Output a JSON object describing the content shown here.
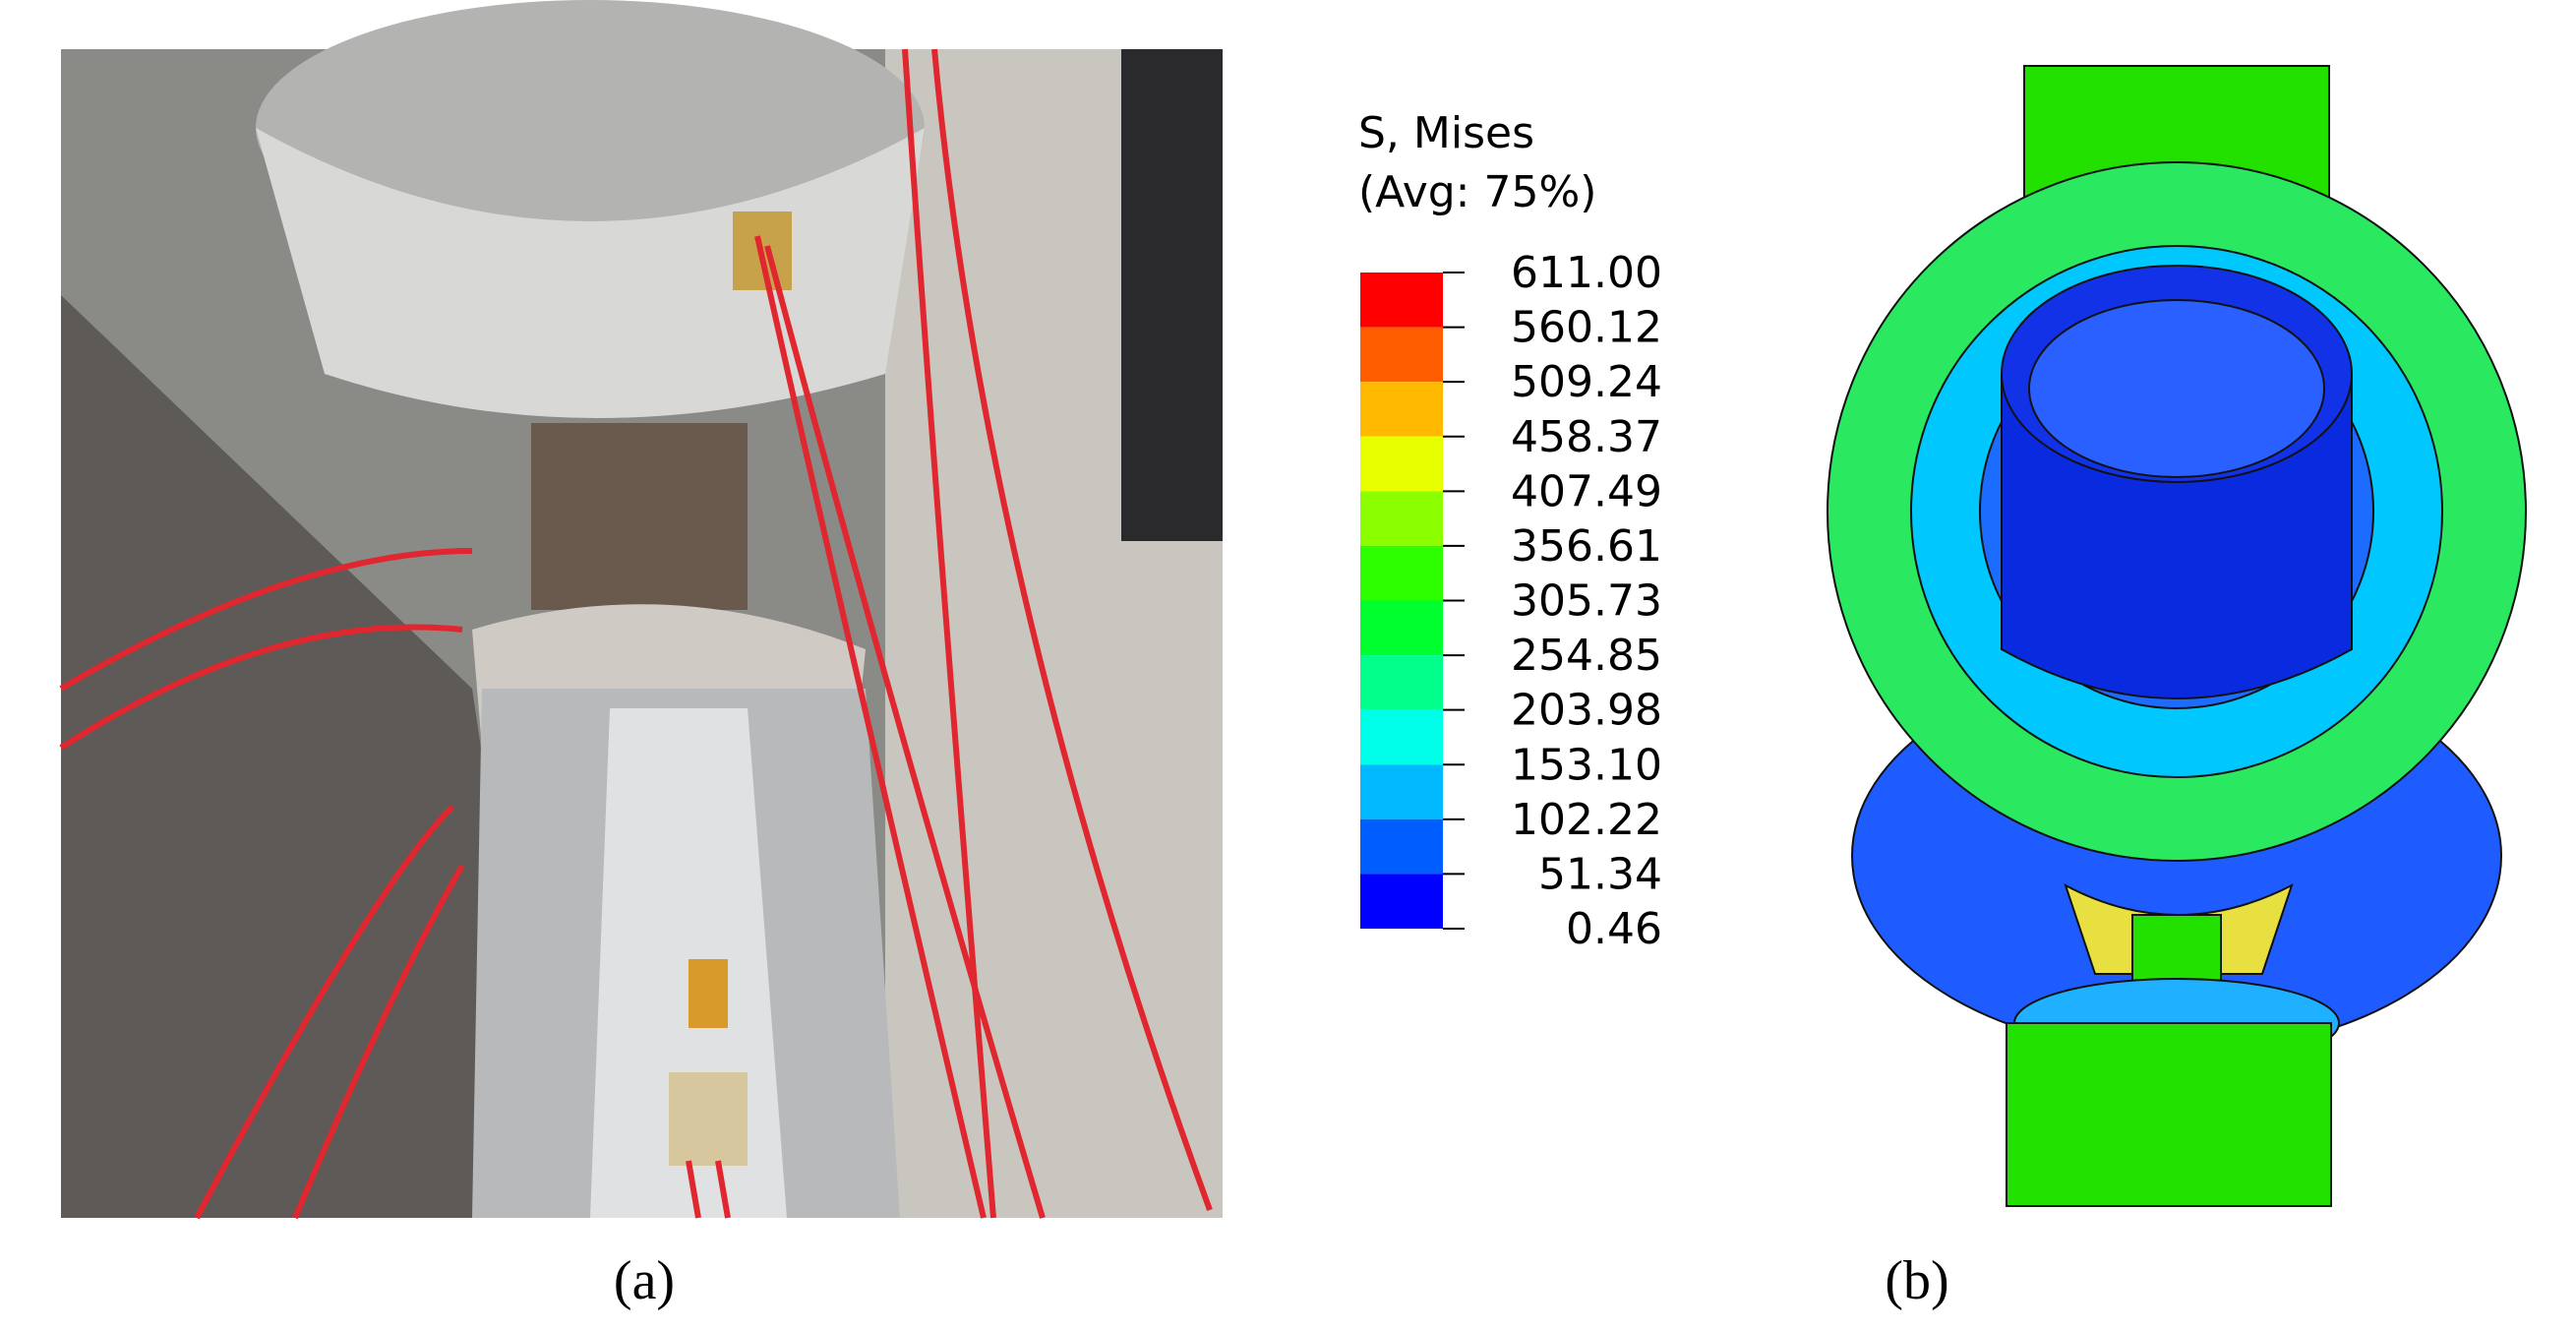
{
  "legend": {
    "title": [
      "S, Mises",
      "(Avg: 75%)"
    ],
    "labels": [
      "611.00",
      "560.12",
      "509.24",
      "458.37",
      "407.49",
      "356.61",
      "305.73",
      "254.85",
      "203.98",
      "153.10",
      "102.22",
      "51.34",
      "0.46"
    ],
    "colors": [
      "#ff0000",
      "#ff5d00",
      "#ffb900",
      "#e8ff00",
      "#8bff00",
      "#2eff00",
      "#00ff2e",
      "#00ff8b",
      "#00ffe8",
      "#00b9ff",
      "#005dff",
      "#0000ff"
    ]
  },
  "panels": [
    {
      "label": "(a)"
    },
    {
      "label": "(b)"
    }
  ]
}
